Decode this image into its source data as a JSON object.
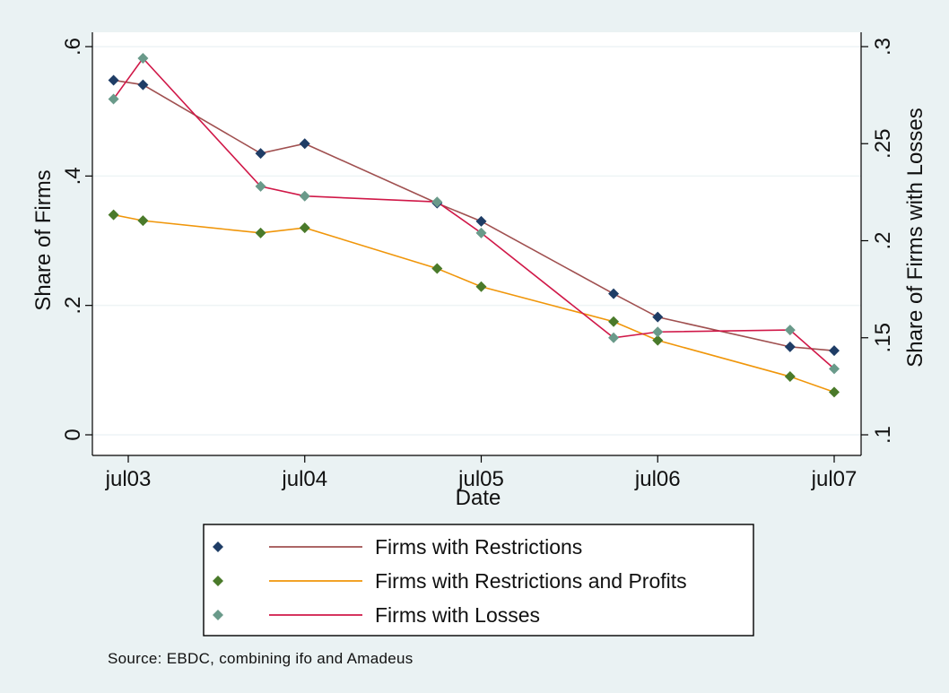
{
  "chart_data": {
    "type": "line",
    "xlabel": "Date",
    "ylabel_left": "Share of Firms",
    "ylabel_right": "Share of Firms with Losses",
    "x_tick_labels": [
      "jul03",
      "jul04",
      "jul05",
      "jul06",
      "jul07"
    ],
    "x_tick_dates": [
      "2003-07",
      "2004-07",
      "2005-07",
      "2006-07",
      "2007-07"
    ],
    "y_left_ticks": [
      0,
      0.2,
      0.4,
      0.6
    ],
    "y_left_tick_labels": [
      "0",
      ".2",
      ".4",
      ".6"
    ],
    "y_left_lim": [
      0,
      0.6
    ],
    "y_right_ticks": [
      0.1,
      0.15,
      0.2,
      0.25,
      0.3
    ],
    "y_right_tick_labels": [
      ".1",
      ".15",
      ".2",
      ".25",
      ".3"
    ],
    "y_right_lim": [
      0.1,
      0.3
    ],
    "grid": true,
    "legend_position": "bottom",
    "series": [
      {
        "name": "Firms with Restrictions",
        "axis": "left",
        "line_color": "#a05050",
        "marker_color": "#1f3d66",
        "x": [
          "2003-06",
          "2003-08",
          "2004-04",
          "2004-07",
          "2005-04",
          "2005-07",
          "2006-04",
          "2006-07",
          "2007-04",
          "2007-07"
        ],
        "values": [
          0.548,
          0.541,
          0.435,
          0.45,
          0.358,
          0.33,
          0.218,
          0.182,
          0.136,
          0.13
        ]
      },
      {
        "name": "Firms with Restrictions and Profits",
        "axis": "left",
        "line_color": "#f0960a",
        "marker_color": "#4a7a2a",
        "x": [
          "2003-06",
          "2003-08",
          "2004-04",
          "2004-07",
          "2005-04",
          "2005-07",
          "2006-04",
          "2006-07",
          "2007-04",
          "2007-07"
        ],
        "values": [
          0.34,
          0.331,
          0.312,
          0.32,
          0.257,
          0.229,
          0.175,
          0.146,
          0.09,
          0.066
        ]
      },
      {
        "name": "Firms with Losses",
        "axis": "right",
        "line_color": "#d01848",
        "marker_color": "#6a9a8a",
        "x": [
          "2003-06",
          "2003-08",
          "2004-04",
          "2004-07",
          "2005-04",
          "2005-07",
          "2006-04",
          "2006-07",
          "2007-04",
          "2007-07"
        ],
        "values": [
          0.273,
          0.294,
          0.228,
          0.223,
          0.22,
          0.204,
          0.15,
          0.153,
          0.154,
          0.134
        ]
      }
    ],
    "note": "Source: EBDC, combining ifo and Amadeus"
  }
}
